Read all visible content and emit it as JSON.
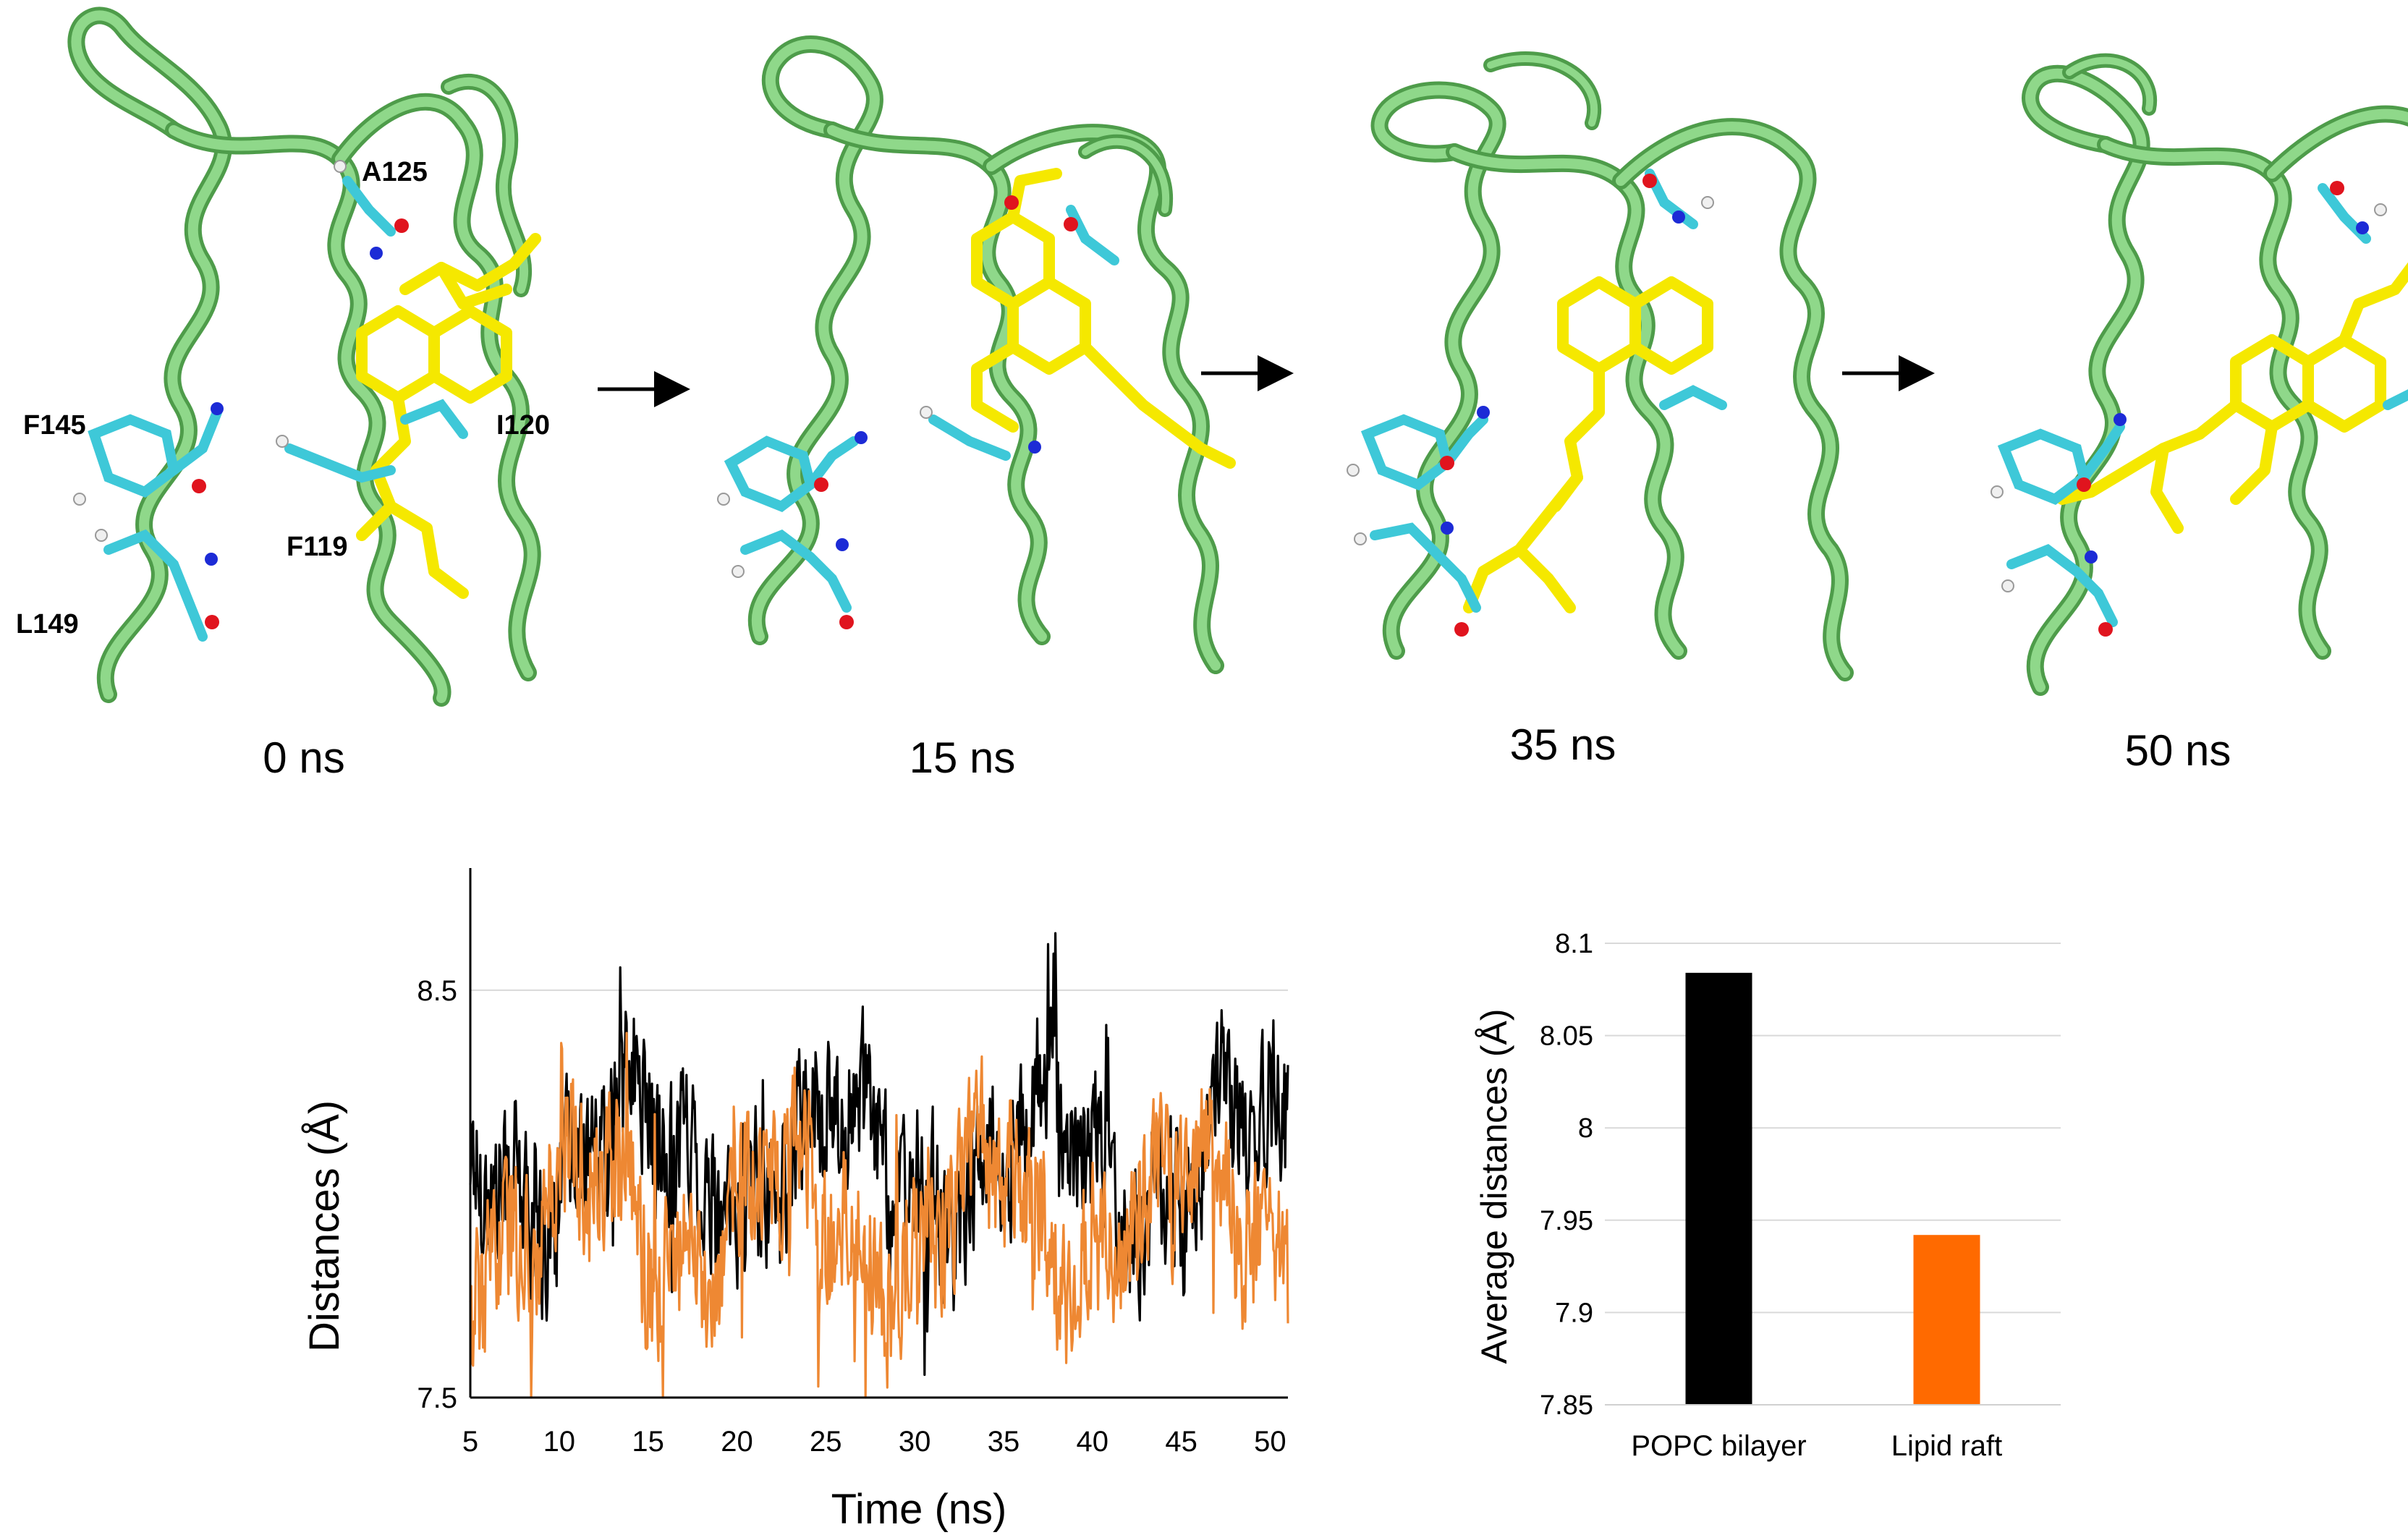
{
  "panels": [
    {
      "time_label": "0 ns"
    },
    {
      "time_label": "15 ns"
    },
    {
      "time_label": "35 ns"
    },
    {
      "time_label": "50 ns"
    }
  ],
  "residue_labels": [
    "A125",
    "F145",
    "I120",
    "F119",
    "L149"
  ],
  "colors": {
    "ribbon": "#8fd88a",
    "ribbon_dark": "#4e9c4a",
    "ligand": "#f5e800",
    "carbon": "#3ec8d8",
    "hydrogen": "#f0f0f0",
    "oxygen": "#e0141e",
    "nitrogen": "#1c2bd6",
    "popc": "#000000",
    "raft": "#ff6a00",
    "raft_line": "#ee8833",
    "grid": "#d9d9d9"
  },
  "chart_data": [
    {
      "type": "line",
      "xlabel": "Time (ns)",
      "ylabel": "Distances (Å)",
      "xlim": [
        5,
        51
      ],
      "ylim": [
        7.5,
        8.8
      ],
      "xticks": [
        "5",
        "10",
        "15",
        "20",
        "25",
        "30",
        "35",
        "40",
        "45",
        "50"
      ],
      "yticks": [
        "7.5",
        "8.5"
      ],
      "series": [
        {
          "color": "#000000",
          "mean": 8.08,
          "min": 7.55,
          "max": 8.64
        },
        {
          "color": "#ee8833",
          "mean": 7.94,
          "min": 7.5,
          "max": 8.5
        }
      ]
    },
    {
      "type": "bar",
      "categories": [
        "POPC bilayer",
        "Lipid raft"
      ],
      "values": [
        8.084,
        7.942
      ],
      "colors": [
        "#000000",
        "#ff6a00"
      ],
      "ylabel": "Average distances (Å)",
      "ylim": [
        7.85,
        8.1
      ],
      "yticks": [
        "7.85",
        "7.9",
        "7.95",
        "8",
        "8.05",
        "8.1"
      ]
    }
  ]
}
